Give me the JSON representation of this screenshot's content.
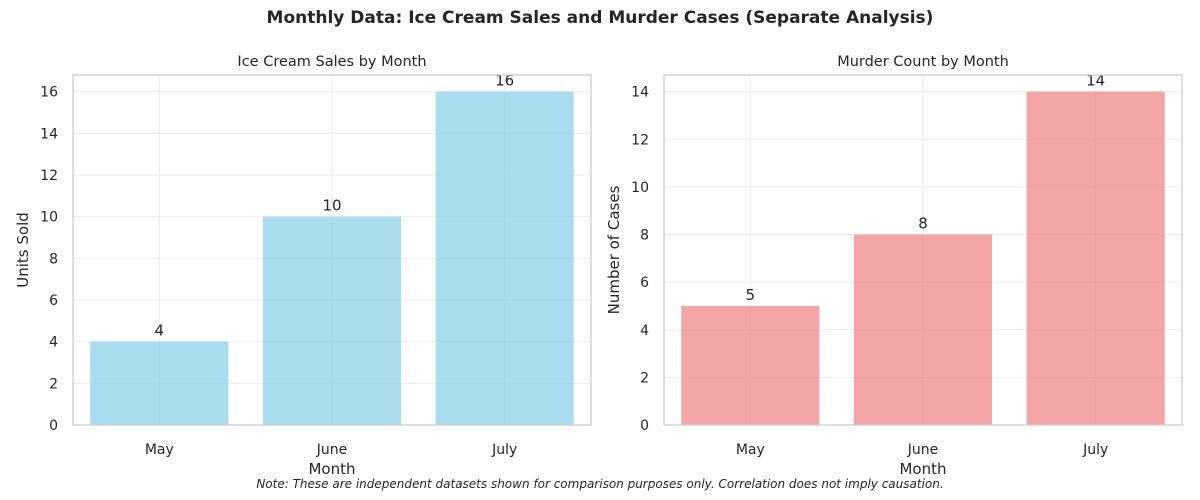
{
  "figure": {
    "title": "Monthly Data: Ice Cream Sales and Murder Cases (Separate Analysis)",
    "note": "Note: These are independent datasets shown for comparison purposes only. Correlation does not imply causation."
  },
  "chart_data": [
    {
      "type": "bar",
      "title": "Ice Cream Sales by Month",
      "xlabel": "Month",
      "ylabel": "Units Sold",
      "categories": [
        "May",
        "June",
        "July"
      ],
      "values": [
        4,
        10,
        16
      ],
      "ylim": [
        0,
        16.8
      ],
      "yticks": [
        0,
        2,
        4,
        6,
        8,
        10,
        12,
        14,
        16
      ],
      "color": "#87ceeb",
      "grid": true,
      "data_labels": true
    },
    {
      "type": "bar",
      "title": "Murder Count by Month",
      "xlabel": "Month",
      "ylabel": "Number of Cases",
      "categories": [
        "May",
        "June",
        "July"
      ],
      "values": [
        5,
        8,
        14
      ],
      "ylim": [
        0,
        14.7
      ],
      "yticks": [
        0,
        2,
        4,
        6,
        8,
        10,
        12,
        14
      ],
      "color": "#f08080",
      "grid": true,
      "data_labels": true
    }
  ]
}
